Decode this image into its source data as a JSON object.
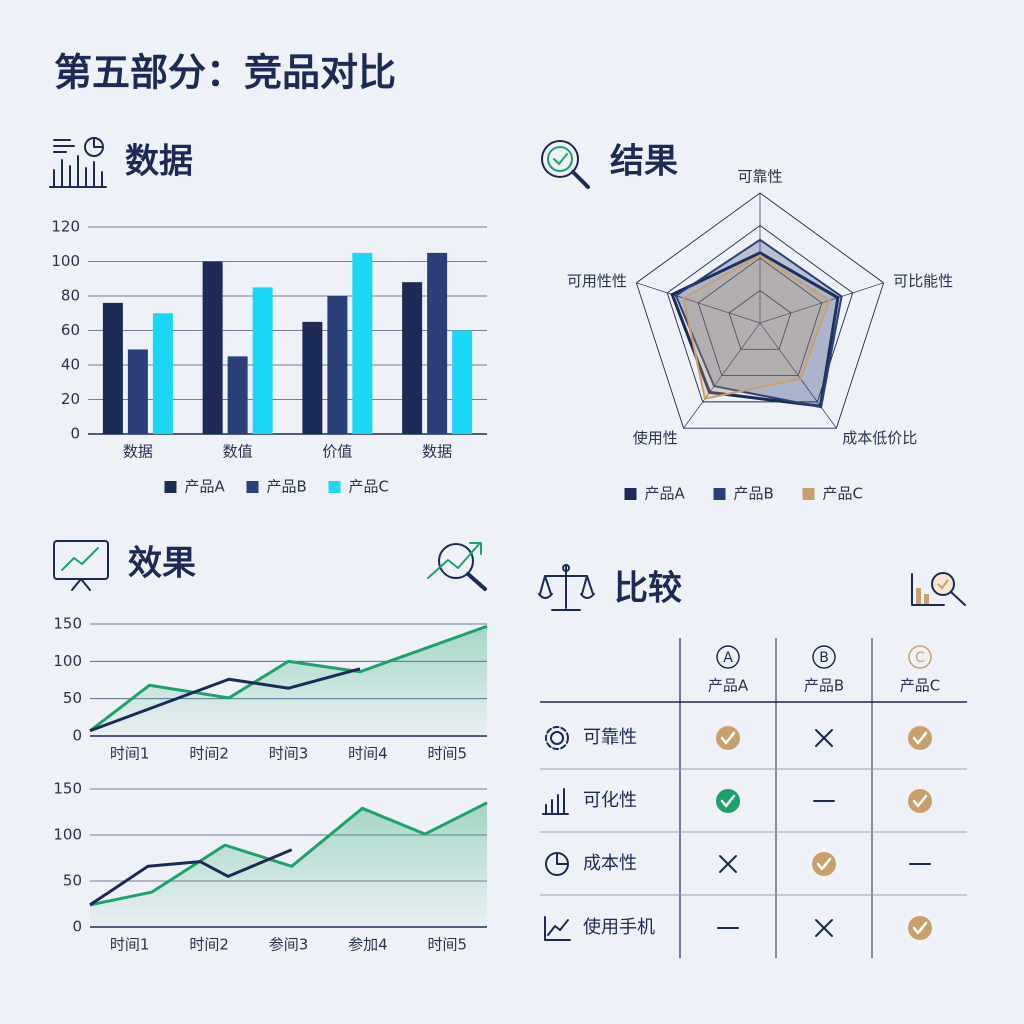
{
  "title": "第五部分：竞品对比",
  "chart_data": [
    {
      "type": "bar",
      "title": "数据",
      "categories": [
        "数据",
        "数值",
        "价值",
        "数据"
      ],
      "series": [
        {
          "name": "产品A",
          "color": "#1b2a57",
          "values": [
            76,
            100,
            65,
            88
          ]
        },
        {
          "name": "产品B",
          "color": "#2b3f7a",
          "values": [
            49,
            45,
            80,
            105
          ]
        },
        {
          "name": "产品C",
          "color": "#1ad8f5",
          "values": [
            70,
            85,
            105,
            60
          ]
        }
      ],
      "ylim": [
        0,
        120
      ],
      "yticks": [
        0,
        20,
        40,
        60,
        80,
        100,
        120
      ],
      "grid": true,
      "legend": "bottom"
    },
    {
      "type": "radar",
      "title": "结果",
      "axes": [
        "可靠性",
        "可比能性",
        "成本低价比",
        "使用性",
        "可用性性"
      ],
      "series": [
        {
          "name": "产品A",
          "color": "#1b2a57",
          "values": [
            54,
            63,
            79,
            66,
            71
          ]
        },
        {
          "name": "产品B",
          "color": "#2b3f7a",
          "values": [
            64,
            66,
            80,
            60,
            68
          ]
        },
        {
          "name": "产品C",
          "color": "#c9a06c",
          "values": [
            52,
            56,
            53,
            72,
            62
          ]
        }
      ],
      "rlim": [
        0,
        100
      ],
      "rticks": [
        25,
        50,
        75,
        100
      ],
      "legend": "bottom"
    },
    {
      "type": "line",
      "title": "效果",
      "xlim": [
        0,
        5
      ],
      "xticks": [
        {
          "value": 0.5,
          "label": "时间1"
        },
        {
          "value": 1.5,
          "label": "时间2"
        },
        {
          "value": 2.5,
          "label": "时间3"
        },
        {
          "value": 3.5,
          "label": "时间4"
        },
        {
          "value": 4.5,
          "label": "时间5"
        }
      ],
      "ylim": [
        0,
        150
      ],
      "yticks": [
        0,
        50,
        100,
        150
      ],
      "grid": true,
      "series": [
        {
          "color": "#1aa36b",
          "fill": true,
          "x": [
            0,
            0.75,
            1.75,
            2.5,
            3.4,
            5
          ],
          "values": [
            7,
            68,
            51,
            100,
            86,
            147
          ]
        },
        {
          "color": "#1b2a57",
          "fill": false,
          "x": [
            0,
            1.75,
            2.5,
            3.4
          ],
          "values": [
            7,
            76,
            64,
            90
          ]
        }
      ]
    },
    {
      "type": "line",
      "xlim": [
        0,
        5
      ],
      "xticks": [
        {
          "value": 0.5,
          "label": "时间1"
        },
        {
          "value": 1.5,
          "label": "时间2"
        },
        {
          "value": 2.5,
          "label": "参间3"
        },
        {
          "value": 3.5,
          "label": "参加4"
        },
        {
          "value": 4.5,
          "label": "时间5"
        }
      ],
      "ylim": [
        0,
        150
      ],
      "yticks": [
        0,
        50,
        100,
        150
      ],
      "grid": true,
      "series": [
        {
          "color": "#1aa36b",
          "fill": true,
          "x": [
            0,
            0.78,
            1.7,
            2.54,
            3.43,
            4.22,
            5
          ],
          "values": [
            24,
            38,
            89,
            66,
            129,
            101,
            135
          ]
        },
        {
          "color": "#1b2a57",
          "fill": false,
          "x": [
            0,
            0.73,
            1.39,
            1.74,
            2.54
          ],
          "values": [
            24,
            66,
            71,
            55,
            84
          ]
        }
      ]
    }
  ],
  "comparison": {
    "title": "比较",
    "columns": [
      {
        "badge": "A",
        "label": "产品A"
      },
      {
        "badge": "B",
        "label": "产品B"
      },
      {
        "badge": "C",
        "label": "产品C"
      }
    ],
    "rows": [
      "可靠性",
      "可化性",
      "成本性",
      "使用手机"
    ]
  }
}
